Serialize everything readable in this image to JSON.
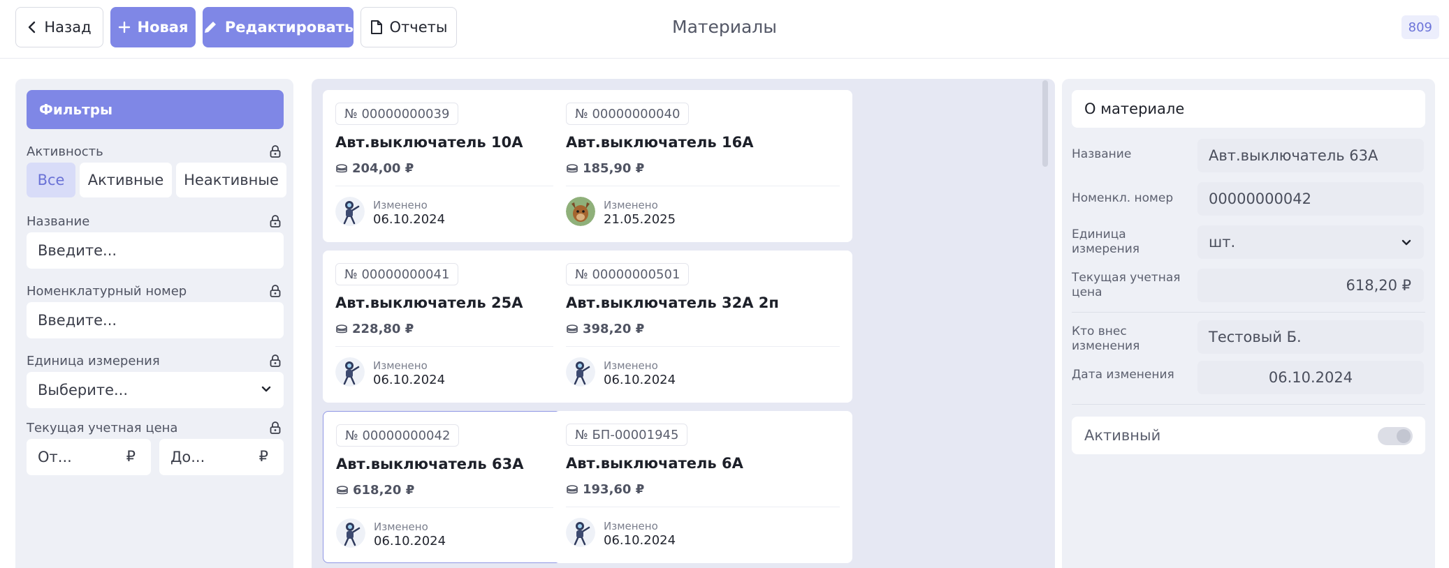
{
  "header": {
    "back_label": "Назад",
    "new_label": "Новая",
    "edit_label": "Редактировать",
    "reports_label": "Отчеты",
    "title": "Материалы",
    "count_badge": "809"
  },
  "filters": {
    "title": "Фильтры",
    "activity": {
      "label": "Активность",
      "options": [
        "Все",
        "Активные",
        "Неактивные"
      ],
      "selected": "Все"
    },
    "name": {
      "label": "Название",
      "placeholder": "Введите..."
    },
    "nomenclature": {
      "label": "Номенклатурный номер",
      "placeholder": "Введите..."
    },
    "unit": {
      "label": "Единица измерения",
      "placeholder": "Выберите..."
    },
    "price": {
      "label": "Текущая учетная цена",
      "from_placeholder": "От...",
      "to_placeholder": "До...",
      "currency": "₽"
    }
  },
  "cards": [
    {
      "number": "№ 00000000039",
      "name": "Авт.выключатель 10А",
      "price": "204,00 ₽",
      "changed_label": "Изменено",
      "changed_date": "06.10.2024",
      "avatar": "robot-avatar",
      "selected": false
    },
    {
      "number": "№ 00000000040",
      "name": "Авт.выключатель 16А",
      "price": "185,90 ₽",
      "changed_label": "Изменено",
      "changed_date": "21.05.2025",
      "avatar": "animal-photo-avatar",
      "selected": false
    },
    {
      "number": "№ 00000000041",
      "name": "Авт.выключатель 25А",
      "price": "228,80 ₽",
      "changed_label": "Изменено",
      "changed_date": "06.10.2024",
      "avatar": "robot-avatar",
      "selected": false
    },
    {
      "number": "№ 00000000501",
      "name": "Авт.выключатель 32А 2п",
      "price": "398,20 ₽",
      "changed_label": "Изменено",
      "changed_date": "06.10.2024",
      "avatar": "robot-avatar",
      "selected": false
    },
    {
      "number": "№ 00000000042",
      "name": "Авт.выключатель 63А",
      "price": "618,20 ₽",
      "changed_label": "Изменено",
      "changed_date": "06.10.2024",
      "avatar": "robot-avatar",
      "selected": true
    },
    {
      "number": "№ БП-00001945",
      "name": "Авт.выключатель 6А",
      "price": "193,60 ₽",
      "changed_label": "Изменено",
      "changed_date": "06.10.2024",
      "avatar": "robot-avatar",
      "selected": false
    }
  ],
  "detail": {
    "title": "О материале",
    "name_label": "Название",
    "name_value": "Авт.выключатель 63А",
    "nomenclature_label": "Номенкл. номер",
    "nomenclature_value": "00000000042",
    "unit_label": "Единица измерения",
    "unit_value": "шт.",
    "price_label": "Текущая учетная цена",
    "price_value": "618,20 ₽",
    "editor_label": "Кто внес изменения",
    "editor_value": "Тестовый Б.",
    "date_label": "Дата изменения",
    "date_value": "06.10.2024",
    "active_label": "Активный",
    "active": false
  },
  "colors": {
    "accent": "#7f87e6",
    "accent_light": "#d8dcf8",
    "panel_bg": "#eef0f6",
    "list_bg": "#e6e8f3"
  }
}
